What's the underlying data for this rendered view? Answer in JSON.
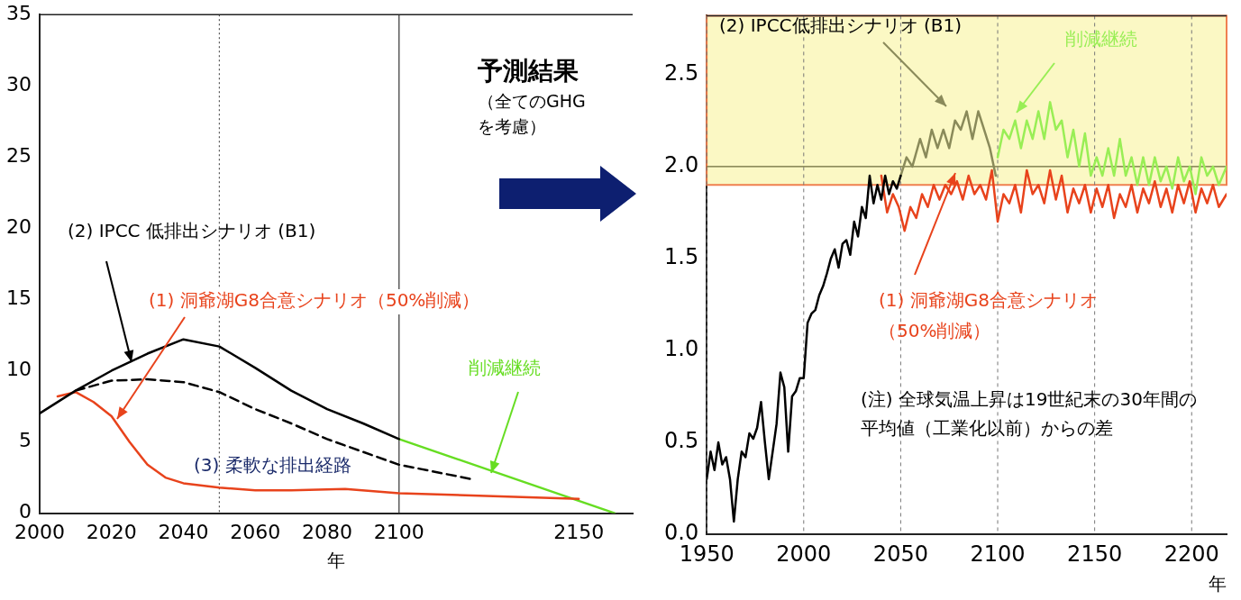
{
  "chart_data": [
    {
      "type": "line",
      "xlabel": "年",
      "xlim": [
        2000,
        2165
      ],
      "xticks": [
        2000,
        2020,
        2040,
        2060,
        2080,
        2100,
        2150
      ],
      "ylim": [
        0,
        35
      ],
      "yticks": [
        0,
        5,
        10,
        15,
        20,
        25,
        30,
        35
      ],
      "grid": false,
      "legend": false,
      "marker": "none",
      "ref_lines": [
        {
          "axis": "x",
          "value": 2050,
          "color": "#555555",
          "line_style": "dotted"
        },
        {
          "axis": "x",
          "value": 2100,
          "color": "#333333",
          "line_style": "solid"
        }
      ],
      "series": [
        {
          "name": "(2) IPCC 低排出シナリオ (B1)",
          "color": "#000000",
          "x": [
            2000,
            2010,
            2020,
            2030,
            2040,
            2050,
            2060,
            2070,
            2080,
            2090,
            2100
          ],
          "values": [
            7,
            8.6,
            10,
            11.2,
            12.2,
            11.7,
            10.2,
            8.6,
            7.3,
            6.3,
            5.2
          ]
        },
        {
          "name": "(1) 洞爺湖G8合意シナリオ（50%削減）",
          "color": "#e8431c",
          "x": [
            2005,
            2010,
            2015,
            2020,
            2025,
            2030,
            2035,
            2040,
            2050,
            2060,
            2070,
            2085,
            2100,
            2150
          ],
          "values": [
            8.2,
            8.5,
            7.8,
            6.8,
            5,
            3.4,
            2.5,
            2.1,
            1.8,
            1.6,
            1.6,
            1.7,
            1.4,
            1
          ]
        },
        {
          "name": "(3) 柔軟な排出経路",
          "color": "#000000",
          "line_style": "dashed",
          "x": [
            2010,
            2020,
            2030,
            2040,
            2050,
            2060,
            2070,
            2080,
            2090,
            2100,
            2120
          ],
          "values": [
            8.6,
            9.3,
            9.4,
            9.2,
            8.5,
            7.3,
            6.3,
            5.2,
            4.3,
            3.4,
            2.4
          ]
        },
        {
          "name": "削減継続",
          "color": "#66dd22",
          "x": [
            2100,
            2160
          ],
          "values": [
            5.2,
            0
          ]
        }
      ]
    },
    {
      "type": "other",
      "title": "予測結果",
      "annotations": [
        "（全てのGHGを考慮）"
      ]
    },
    {
      "type": "line",
      "xlabel": "年",
      "xlim": [
        1950,
        2218
      ],
      "xticks": [
        1950,
        2000,
        2050,
        2100,
        2150,
        2200
      ],
      "ylim": [
        0,
        2.82
      ],
      "yticks": [
        {
          "value": 0,
          "label": "0.0"
        },
        0.5,
        {
          "value": 1,
          "label": "1.0"
        },
        1.5,
        {
          "value": 2,
          "label": "2.0"
        },
        2.5
      ],
      "grid": "x",
      "legend": false,
      "marker": "none",
      "bands": [
        {
          "axis": "y",
          "from": 1.9,
          "to": 2.82,
          "color": "#fbf8c4"
        }
      ],
      "ref_lines": [
        {
          "axis": "y",
          "value": 2,
          "color": "#6b6b3a",
          "line_style": "solid"
        }
      ],
      "annotations": [
        "(注) 全球気温上昇は19世紀末の30年間の平均値（工業化以前）からの差"
      ],
      "series": [
        {
          "color": "#000000",
          "x": [
            1950,
            1952,
            1954,
            1956,
            1958,
            1960,
            1962,
            1964,
            1966,
            1968,
            1970,
            1972,
            1974,
            1976,
            1978,
            1980,
            1982,
            1984,
            1986,
            1988,
            1990,
            1992,
            1994,
            1996,
            1998,
            2000,
            2002,
            2004,
            2006,
            2008,
            2010,
            2012,
            2014,
            2016,
            2018,
            2020,
            2022,
            2024,
            2026,
            2028,
            2030,
            2032,
            2034,
            2036,
            2038,
            2040,
            2042,
            2044,
            2046,
            2048,
            2050
          ],
          "values": [
            0.3,
            0.45,
            0.35,
            0.5,
            0.38,
            0.42,
            0.3,
            0.07,
            0.3,
            0.45,
            0.42,
            0.55,
            0.52,
            0.58,
            0.72,
            0.5,
            0.3,
            0.45,
            0.6,
            0.88,
            0.8,
            0.45,
            0.75,
            0.78,
            0.85,
            0.85,
            1.15,
            1.2,
            1.22,
            1.3,
            1.35,
            1.42,
            1.5,
            1.55,
            1.45,
            1.58,
            1.6,
            1.52,
            1.7,
            1.62,
            1.78,
            1.72,
            1.95,
            1.8,
            1.9,
            1.82,
            1.95,
            1.85,
            1.92,
            1.88,
            1.95
          ]
        },
        {
          "name": "(2) IPCC低排出シナリオ (B1)",
          "color": "#8a8a5a",
          "x": [
            2050,
            2053,
            2056,
            2060,
            2063,
            2066,
            2069,
            2072,
            2075,
            2078,
            2081,
            2084,
            2087,
            2090,
            2093,
            2096,
            2099
          ],
          "values": [
            1.95,
            2.05,
            2,
            2.15,
            2.05,
            2.2,
            2.1,
            2.2,
            2.1,
            2.25,
            2.2,
            2.3,
            2.15,
            2.3,
            2.2,
            2.1,
            1.95
          ]
        },
        {
          "name": "削減継続",
          "color": "#99ee55",
          "x": [
            2100,
            2103,
            2106,
            2109,
            2112,
            2115,
            2118,
            2121,
            2124,
            2127,
            2130,
            2133,
            2136,
            2139,
            2142,
            2145,
            2148,
            2151,
            2154,
            2157,
            2160,
            2163,
            2166,
            2169,
            2172,
            2175,
            2178,
            2181,
            2184,
            2187,
            2190,
            2193,
            2196,
            2199,
            2202,
            2205,
            2208,
            2211,
            2214,
            2218
          ],
          "values": [
            2.05,
            2.2,
            2.15,
            2.25,
            2.1,
            2.25,
            2.15,
            2.3,
            2.15,
            2.35,
            2.2,
            2.25,
            2.05,
            2.2,
            2,
            2.18,
            1.95,
            2.05,
            1.95,
            2.1,
            1.95,
            2.15,
            1.95,
            2.05,
            1.9,
            2.05,
            1.9,
            2.05,
            1.92,
            2,
            1.88,
            2.05,
            1.92,
            2,
            1.85,
            2.05,
            1.95,
            2,
            1.9,
            2
          ]
        },
        {
          "name": "(1) 洞爺湖G8合意シナリオ（50%削減）",
          "color": "#e8431c",
          "x": [
            2040,
            2043,
            2046,
            2049,
            2052,
            2055,
            2058,
            2061,
            2064,
            2067,
            2070,
            2073,
            2076,
            2079,
            2082,
            2085,
            2088,
            2091,
            2094,
            2097,
            2100,
            2103,
            2106,
            2109,
            2112,
            2115,
            2118,
            2121,
            2124,
            2127,
            2130,
            2133,
            2136,
            2139,
            2142,
            2145,
            2148,
            2151,
            2154,
            2157,
            2160,
            2163,
            2166,
            2169,
            2172,
            2175,
            2178,
            2181,
            2184,
            2187,
            2190,
            2193,
            2196,
            2199,
            2202,
            2205,
            2208,
            2211,
            2214,
            2218
          ],
          "values": [
            1.95,
            1.75,
            1.85,
            1.78,
            1.65,
            1.78,
            1.72,
            1.85,
            1.78,
            1.9,
            1.82,
            1.9,
            1.85,
            1.92,
            1.82,
            1.95,
            1.85,
            1.9,
            1.82,
            1.98,
            1.7,
            1.85,
            1.8,
            1.9,
            1.75,
            1.98,
            1.85,
            1.9,
            1.8,
            1.98,
            1.82,
            1.95,
            1.75,
            1.88,
            1.8,
            1.9,
            1.75,
            1.88,
            1.78,
            1.9,
            1.72,
            1.85,
            1.78,
            1.9,
            1.75,
            1.88,
            1.8,
            1.92,
            1.78,
            1.88,
            1.75,
            1.9,
            1.8,
            1.92,
            1.75,
            1.88,
            1.8,
            1.9,
            1.78,
            1.85
          ]
        }
      ]
    }
  ]
}
